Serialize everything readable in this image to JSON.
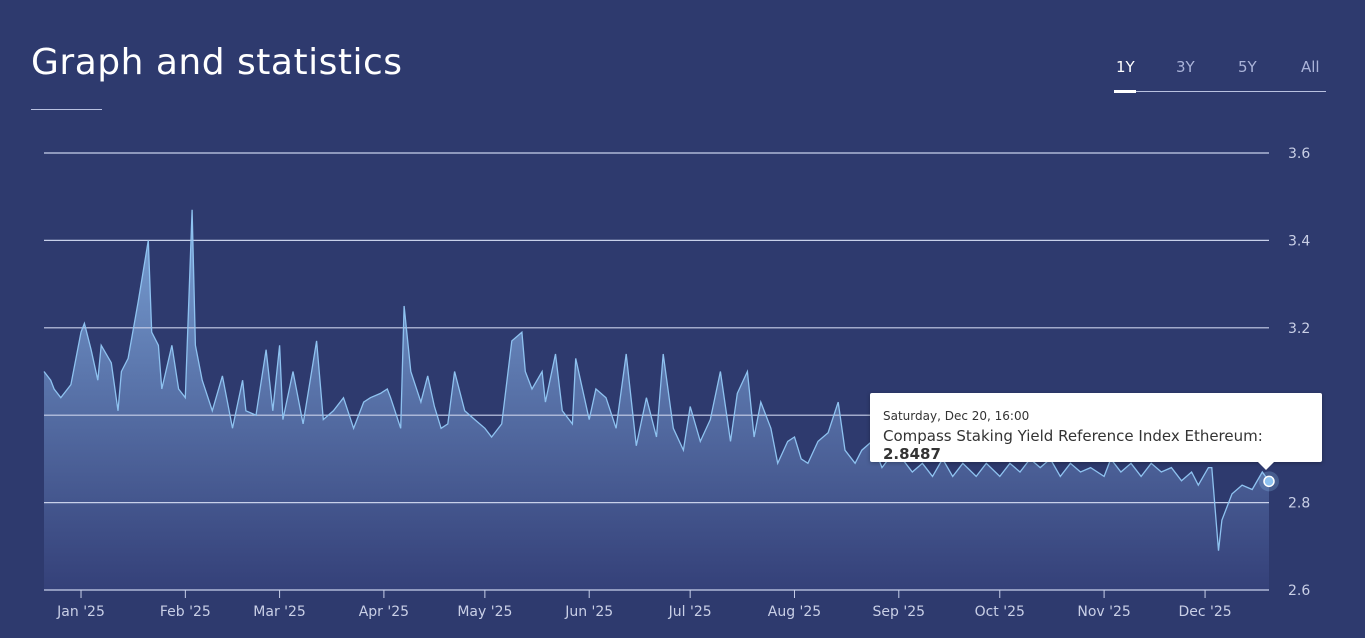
{
  "header": {
    "title": "Graph and statistics"
  },
  "range_tabs": [
    {
      "label": "1Y",
      "active": true
    },
    {
      "label": "3Y",
      "active": false
    },
    {
      "label": "5Y",
      "active": false
    },
    {
      "label": "All",
      "active": false
    }
  ],
  "tooltip": {
    "date": "Saturday, Dec 20, 16:00",
    "series": "Compass Staking Yield Reference Index Ethereum",
    "separator": ": ",
    "value": "2.8487"
  },
  "colors": {
    "background": "#2e3a6e",
    "line": "#8ec2f0",
    "fill_top": "#7fa8dc",
    "fill_bottom": "#35417a",
    "grid": "#c8d0ea"
  },
  "chart_data": {
    "type": "area",
    "title": "",
    "xlabel": "",
    "ylabel": "",
    "ylim": [
      2.6,
      3.6
    ],
    "yticks": [
      "2.6",
      "2.8",
      "3.0",
      "3.2",
      "3.4",
      "3.6"
    ],
    "xlim": [
      "2024-12-21",
      "2025-12-20"
    ],
    "xticks": [
      {
        "date": "2025-01-01",
        "label": "Jan '25"
      },
      {
        "date": "2025-02-01",
        "label": "Feb '25"
      },
      {
        "date": "2025-03-01",
        "label": "Mar '25"
      },
      {
        "date": "2025-04-01",
        "label": "Apr '25"
      },
      {
        "date": "2025-05-01",
        "label": "May '25"
      },
      {
        "date": "2025-06-01",
        "label": "Jun '25"
      },
      {
        "date": "2025-07-01",
        "label": "Jul '25"
      },
      {
        "date": "2025-08-01",
        "label": "Aug '25"
      },
      {
        "date": "2025-09-01",
        "label": "Sep '25"
      },
      {
        "date": "2025-10-01",
        "label": "Oct '25"
      },
      {
        "date": "2025-11-01",
        "label": "Nov '25"
      },
      {
        "date": "2025-12-01",
        "label": "Dec '25"
      }
    ],
    "grid": true,
    "y_axis_side": "right",
    "series": [
      {
        "name": "Compass Staking Yield Reference Index Ethereum",
        "points": [
          [
            "2024-12-21",
            3.1
          ],
          [
            "2024-12-23",
            3.08
          ],
          [
            "2024-12-24",
            3.06
          ],
          [
            "2024-12-26",
            3.04
          ],
          [
            "2024-12-29",
            3.07
          ],
          [
            "2025-01-01",
            3.19
          ],
          [
            "2025-01-02",
            3.21
          ],
          [
            "2025-01-04",
            3.15
          ],
          [
            "2025-01-06",
            3.08
          ],
          [
            "2025-01-07",
            3.16
          ],
          [
            "2025-01-10",
            3.12
          ],
          [
            "2025-01-12",
            3.01
          ],
          [
            "2025-01-13",
            3.1
          ],
          [
            "2025-01-15",
            3.13
          ],
          [
            "2025-01-18",
            3.26
          ],
          [
            "2025-01-21",
            3.4
          ],
          [
            "2025-01-22",
            3.19
          ],
          [
            "2025-01-24",
            3.16
          ],
          [
            "2025-01-25",
            3.06
          ],
          [
            "2025-01-28",
            3.16
          ],
          [
            "2025-01-30",
            3.06
          ],
          [
            "2025-02-01",
            3.04
          ],
          [
            "2025-02-03",
            3.47
          ],
          [
            "2025-02-04",
            3.16
          ],
          [
            "2025-02-06",
            3.08
          ],
          [
            "2025-02-09",
            3.01
          ],
          [
            "2025-02-12",
            3.09
          ],
          [
            "2025-02-15",
            2.97
          ],
          [
            "2025-02-18",
            3.08
          ],
          [
            "2025-02-19",
            3.01
          ],
          [
            "2025-02-22",
            3.0
          ],
          [
            "2025-02-25",
            3.15
          ],
          [
            "2025-02-27",
            3.01
          ],
          [
            "2025-03-01",
            3.16
          ],
          [
            "2025-03-02",
            2.99
          ],
          [
            "2025-03-05",
            3.1
          ],
          [
            "2025-03-08",
            2.98
          ],
          [
            "2025-03-12",
            3.17
          ],
          [
            "2025-03-14",
            2.99
          ],
          [
            "2025-03-17",
            3.01
          ],
          [
            "2025-03-20",
            3.04
          ],
          [
            "2025-03-23",
            2.97
          ],
          [
            "2025-03-26",
            3.03
          ],
          [
            "2025-03-28",
            3.04
          ],
          [
            "2025-03-31",
            3.05
          ],
          [
            "2025-04-02",
            3.06
          ],
          [
            "2025-04-03",
            3.04
          ],
          [
            "2025-04-06",
            2.97
          ],
          [
            "2025-04-07",
            3.25
          ],
          [
            "2025-04-09",
            3.1
          ],
          [
            "2025-04-12",
            3.03
          ],
          [
            "2025-04-14",
            3.09
          ],
          [
            "2025-04-16",
            3.02
          ],
          [
            "2025-04-18",
            2.97
          ],
          [
            "2025-04-20",
            2.98
          ],
          [
            "2025-04-22",
            3.1
          ],
          [
            "2025-04-25",
            3.01
          ],
          [
            "2025-04-28",
            2.99
          ],
          [
            "2025-05-01",
            2.97
          ],
          [
            "2025-05-03",
            2.95
          ],
          [
            "2025-05-06",
            2.98
          ],
          [
            "2025-05-09",
            3.17
          ],
          [
            "2025-05-12",
            3.19
          ],
          [
            "2025-05-13",
            3.1
          ],
          [
            "2025-05-15",
            3.06
          ],
          [
            "2025-05-18",
            3.1
          ],
          [
            "2025-05-19",
            3.03
          ],
          [
            "2025-05-22",
            3.14
          ],
          [
            "2025-05-24",
            3.01
          ],
          [
            "2025-05-27",
            2.98
          ],
          [
            "2025-05-28",
            3.13
          ],
          [
            "2025-06-01",
            2.99
          ],
          [
            "2025-06-03",
            3.06
          ],
          [
            "2025-06-06",
            3.04
          ],
          [
            "2025-06-09",
            2.97
          ],
          [
            "2025-06-12",
            3.14
          ],
          [
            "2025-06-15",
            2.93
          ],
          [
            "2025-06-18",
            3.04
          ],
          [
            "2025-06-21",
            2.95
          ],
          [
            "2025-06-23",
            3.14
          ],
          [
            "2025-06-26",
            2.97
          ],
          [
            "2025-06-29",
            2.92
          ],
          [
            "2025-07-01",
            3.02
          ],
          [
            "2025-07-04",
            2.94
          ],
          [
            "2025-07-07",
            2.99
          ],
          [
            "2025-07-10",
            3.1
          ],
          [
            "2025-07-13",
            2.94
          ],
          [
            "2025-07-15",
            3.05
          ],
          [
            "2025-07-18",
            3.1
          ],
          [
            "2025-07-20",
            2.95
          ],
          [
            "2025-07-22",
            3.03
          ],
          [
            "2025-07-25",
            2.97
          ],
          [
            "2025-07-27",
            2.89
          ],
          [
            "2025-07-30",
            2.94
          ],
          [
            "2025-08-01",
            2.95
          ],
          [
            "2025-08-03",
            2.9
          ],
          [
            "2025-08-05",
            2.89
          ],
          [
            "2025-08-08",
            2.94
          ],
          [
            "2025-08-11",
            2.96
          ],
          [
            "2025-08-14",
            3.03
          ],
          [
            "2025-08-16",
            2.92
          ],
          [
            "2025-08-19",
            2.89
          ],
          [
            "2025-08-21",
            2.92
          ],
          [
            "2025-08-24",
            2.94
          ],
          [
            "2025-08-27",
            2.88
          ],
          [
            "2025-08-30",
            2.91
          ],
          [
            "2025-09-02",
            2.9
          ],
          [
            "2025-09-05",
            2.87
          ],
          [
            "2025-09-08",
            2.89
          ],
          [
            "2025-09-11",
            2.86
          ],
          [
            "2025-09-14",
            2.9
          ],
          [
            "2025-09-17",
            2.86
          ],
          [
            "2025-09-20",
            2.89
          ],
          [
            "2025-09-24",
            2.86
          ],
          [
            "2025-09-27",
            2.89
          ],
          [
            "2025-10-01",
            2.86
          ],
          [
            "2025-10-04",
            2.89
          ],
          [
            "2025-10-07",
            2.87
          ],
          [
            "2025-10-10",
            2.9
          ],
          [
            "2025-10-13",
            2.88
          ],
          [
            "2025-10-16",
            2.9
          ],
          [
            "2025-10-19",
            2.86
          ],
          [
            "2025-10-22",
            2.89
          ],
          [
            "2025-10-25",
            2.87
          ],
          [
            "2025-10-28",
            2.88
          ],
          [
            "2025-11-01",
            2.86
          ],
          [
            "2025-11-03",
            2.9
          ],
          [
            "2025-11-06",
            2.87
          ],
          [
            "2025-11-09",
            2.89
          ],
          [
            "2025-11-12",
            2.86
          ],
          [
            "2025-11-15",
            2.89
          ],
          [
            "2025-11-18",
            2.87
          ],
          [
            "2025-11-21",
            2.88
          ],
          [
            "2025-11-24",
            2.85
          ],
          [
            "2025-11-27",
            2.87
          ],
          [
            "2025-11-29",
            2.84
          ],
          [
            "2025-12-02",
            2.88
          ],
          [
            "2025-12-03",
            2.88
          ],
          [
            "2025-12-05",
            2.69
          ],
          [
            "2025-12-06",
            2.76
          ],
          [
            "2025-12-09",
            2.82
          ],
          [
            "2025-12-12",
            2.84
          ],
          [
            "2025-12-15",
            2.83
          ],
          [
            "2025-12-18",
            2.87
          ],
          [
            "2025-12-20",
            2.8487
          ]
        ]
      }
    ],
    "highlighted_point": [
      "2025-12-20",
      2.8487
    ]
  }
}
